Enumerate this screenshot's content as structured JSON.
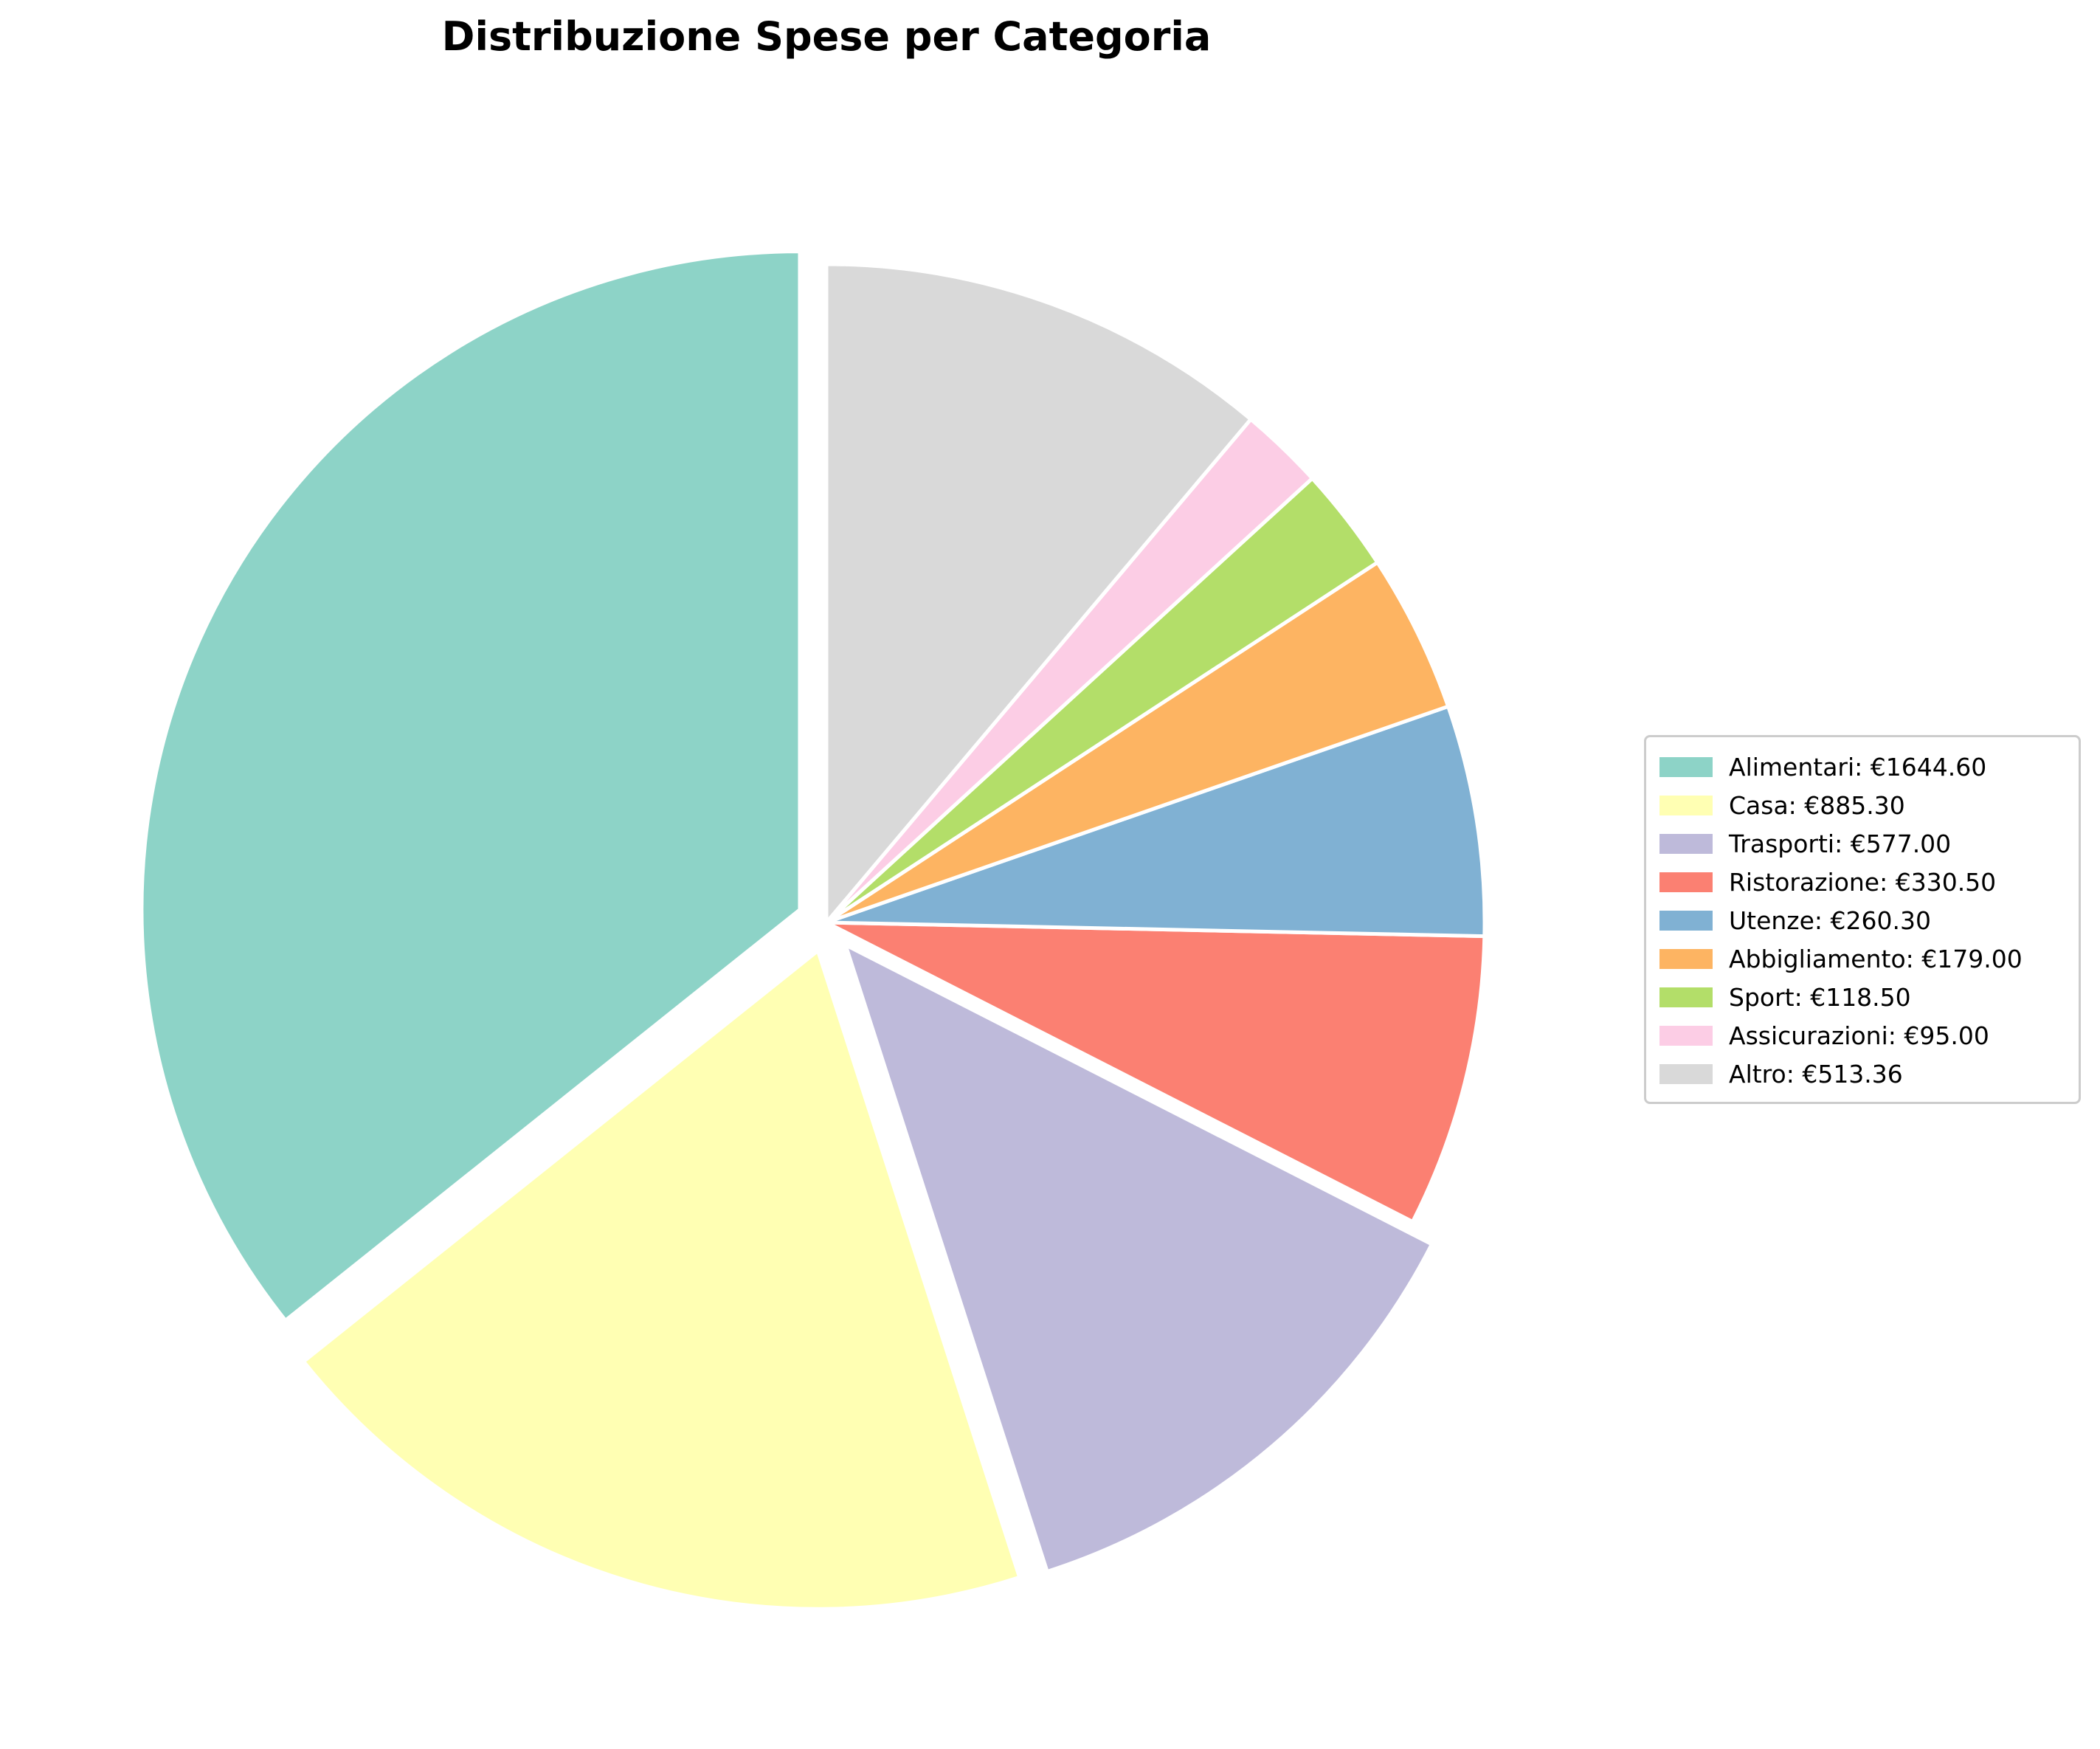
{
  "chart_data": {
    "type": "pie",
    "title": "Distribuzione Spese per Categoria",
    "categories": [
      "Alimentari",
      "Casa",
      "Trasporti",
      "Ristorazione",
      "Utenze",
      "Abbigliamento",
      "Sport",
      "Assicurazioni",
      "Altro"
    ],
    "values": [
      1644.6,
      885.3,
      577.0,
      330.5,
      260.3,
      179.0,
      118.5,
      95.0,
      513.36
    ],
    "colors": [
      "#8dd3c7",
      "#ffffb3",
      "#bebada",
      "#fb8072",
      "#80b1d3",
      "#fdb462",
      "#b3de69",
      "#fccde5",
      "#d9d9d9"
    ],
    "exploded": [
      "Alimentari",
      "Casa",
      "Trasporti"
    ],
    "start_angle": "top",
    "direction": "counterclockwise",
    "legend_position": "right",
    "legend_labels": [
      "Alimentari: €1644.60",
      "Casa: €885.30",
      "Trasporti: €577.00",
      "Ristorazione: €330.50",
      "Utenze: €260.30",
      "Abbigliamento: €179.00",
      "Sport: €118.50",
      "Assicurazioni: €95.00",
      "Altro: €513.36"
    ]
  }
}
